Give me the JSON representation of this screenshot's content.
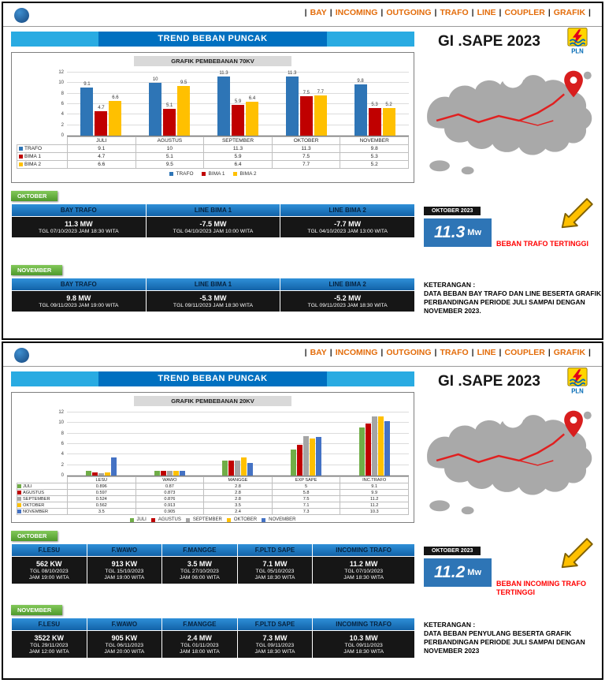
{
  "nav": {
    "items": [
      "BAY",
      "INCOMING",
      "OUTGOING",
      "TRAFO",
      "LINE",
      "COUPLER",
      "GRAFIK"
    ]
  },
  "colors": {
    "nav_text": "#E36C0A",
    "title_bar_light_blue": "#29ABE2",
    "title_box_blue": "#0070C0",
    "month_label_green": "#5FA33C",
    "table_header_blue": "#1E78C8",
    "table_cell_dark": "#161616",
    "highlight_blue": "#2E75B6",
    "caption_red": "#FF0000",
    "map_gray": "#A9A9A9",
    "accent_yellow": "#FFC000"
  },
  "chart_data": [
    {
      "type": "bar",
      "title": "GRAFIK PEMBEBANAN 70KV",
      "categories": [
        "JULI",
        "AGUSTUS",
        "SEPTEMBER",
        "OKTOBER",
        "NOVEMBER"
      ],
      "series": [
        {
          "name": "TRAFO",
          "color": "#2E75B6",
          "values": [
            9.1,
            10,
            11.3,
            11.3,
            9.8
          ]
        },
        {
          "name": "BIMA 1",
          "color": "#C00000",
          "values": [
            4.7,
            5.1,
            5.9,
            7.5,
            5.3
          ]
        },
        {
          "name": "BIMA 2",
          "color": "#FFC000",
          "values": [
            6.6,
            9.5,
            6.4,
            7.7,
            5.2
          ]
        }
      ],
      "ylim": [
        0,
        12
      ],
      "ytick_step": 2,
      "show_value_labels": true,
      "data_table": true,
      "grid": true,
      "legend_position": "bottom"
    },
    {
      "type": "bar",
      "title": "GRAFIK PEMBEBANAN 20KV",
      "categories": [
        "LESU",
        "WAWO",
        "MANGGE",
        "EXP SAPE",
        "INC.TRAFO"
      ],
      "series": [
        {
          "name": "JULI",
          "color": "#70AD47",
          "values": [
            0.896,
            0.87,
            2.8,
            5,
            9.1
          ]
        },
        {
          "name": "AGUSTUS",
          "color": "#C00000",
          "values": [
            0.597,
            0.873,
            2.8,
            5.8,
            9.9
          ]
        },
        {
          "name": "SEPTEMBER",
          "color": "#A5A5A5",
          "values": [
            0.524,
            0.876,
            2.8,
            7.5,
            11.2
          ]
        },
        {
          "name": "OKTOBER",
          "color": "#FFC000",
          "values": [
            0.562,
            0.913,
            3.5,
            7.1,
            11.2
          ]
        },
        {
          "name": "NOVEMBER",
          "color": "#4472C4",
          "values": [
            3.5,
            0.905,
            2.4,
            7.3,
            10.3
          ]
        }
      ],
      "ylim": [
        0,
        12
      ],
      "ytick_step": 2,
      "show_value_labels": false,
      "data_table": true,
      "grid": true,
      "legend_position": "bottom"
    }
  ],
  "panels": [
    {
      "title": "TREND BEBAN PUNCAK",
      "station": "GI .SAPE 2023",
      "sections": [
        {
          "label": "OKTOBER",
          "columns": [
            "BAY TRAFO",
            "LINE BIMA 1",
            "LINE BIMA 2"
          ],
          "cells": [
            [
              "11.3 MW",
              "TGL 07/10/2023 JAM 18:30 WITA"
            ],
            [
              "-7.5 MW",
              "TGL 04/10/2023 JAM 10:00 WITA"
            ],
            [
              "-7.7 MW",
              "TGL 04/10/2023 JAM 13:00 WITA"
            ]
          ]
        },
        {
          "label": "NOVEMBER",
          "columns": [
            "BAY TRAFO",
            "LINE BIMA 1",
            "LINE BIMA 2"
          ],
          "cells": [
            [
              "9.8 MW",
              "TGL 09/11/2023 JAM 19:00 WITA"
            ],
            [
              "-5.3 MW",
              "TGL 09/11/2023 JAM 18:30 WITA"
            ],
            [
              "-5.2 MW",
              "TGL 09/11/2023 JAM 18:30 WITA"
            ]
          ]
        }
      ],
      "highlight": {
        "badge": "OKTOBER 2023",
        "value": "11.3",
        "unit": "Mw",
        "caption": "BEBAN TRAFO TERTINGGI"
      },
      "keterangan": {
        "heading": "KETERANGAN :",
        "body": "DATA BEBAN BAY TRAFO DAN LINE BESERTA GRAFIK PERBANDINGAN PERIODE JULI SAMPAI DENGAN NOVEMBER 2023."
      }
    },
    {
      "title": "TREND BEBAN PUNCAK",
      "station": "GI .SAPE 2023",
      "sections": [
        {
          "label": "OKTOBER",
          "columns": [
            "F.LESU",
            "F.WAWO",
            "F.MANGGE",
            "F.PLTD SAPE",
            "INCOMING TRAFO"
          ],
          "cells": [
            [
              "562 KW",
              "TGL 08/10/2023",
              "JAM 19:00 WITA"
            ],
            [
              "913 KW",
              "TGL 15/10/2023",
              "JAM 19:00 WITA"
            ],
            [
              "3.5 MW",
              "TGL 27/10/2023",
              "JAM 06:00 WITA"
            ],
            [
              "7.1 MW",
              "TGL 05/10/2023",
              "JAM 18:30 WITA"
            ],
            [
              "11.2 MW",
              "TGL 07/10/2023",
              "JAM 18:30 WITA"
            ]
          ]
        },
        {
          "label": "NOVEMBER",
          "columns": [
            "F.LESU",
            "F.WAWO",
            "F.MANGGE",
            "F.PLTD SAPE",
            "INCOMING TRAFO"
          ],
          "cells": [
            [
              "3522 KW",
              "TGL 29/11/2023",
              "JAM 12:00 WITA"
            ],
            [
              "905 KW",
              "TGL 06/11/2023",
              "JAM 20:00 WITA"
            ],
            [
              "2.4 MW",
              "TGL 01/11/2023",
              "JAM 18:00 WITA"
            ],
            [
              "7.3 MW",
              "TGL 09/11/2023",
              "JAM 18:30 WITA"
            ],
            [
              "10.3 MW",
              "TGL 09/11/2023",
              "JAM 18:30 WITA"
            ]
          ]
        }
      ],
      "highlight": {
        "badge": "OKTOBER 2023",
        "value": "11.2",
        "unit": "Mw",
        "caption": "BEBAN INCOMING TRAFO TERTINGGI"
      },
      "keterangan": {
        "heading": "KETERANGAN :",
        "body": "DATA BEBAN PENYULANG BESERTA GRAFIK PERBANDINGAN PERIODE JULI SAMPAI DENGAN NOVEMBER 2023"
      }
    }
  ]
}
